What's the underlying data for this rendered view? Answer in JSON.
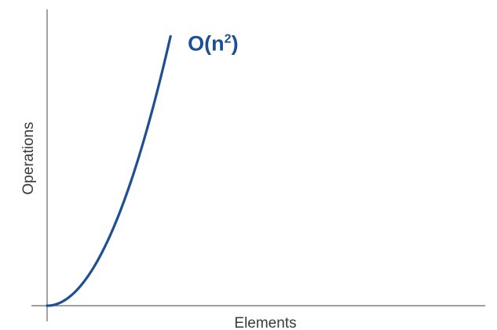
{
  "chart_data": {
    "type": "line",
    "title": "",
    "xlabel": "Elements",
    "ylabel": "Operations",
    "grid": false,
    "legend": "none",
    "colors": {
      "series": "#1e4f93",
      "axis": "#666666",
      "text": "#3a3a3a"
    },
    "series": [
      {
        "name": "O(n²)",
        "label_base": "O(n",
        "label_exp": "2",
        "label_close": ")",
        "function": "n^2",
        "x": [
          0,
          0.1,
          0.2,
          0.3,
          0.4,
          0.5,
          0.6,
          0.7,
          0.8,
          0.9,
          1.0
        ],
        "values": [
          0,
          0.01,
          0.04,
          0.09,
          0.16,
          0.25,
          0.36,
          0.49,
          0.64,
          0.81,
          1.0
        ]
      }
    ],
    "xlim": [
      0,
      3.55
    ],
    "ylim": [
      0,
      1.1
    ]
  }
}
